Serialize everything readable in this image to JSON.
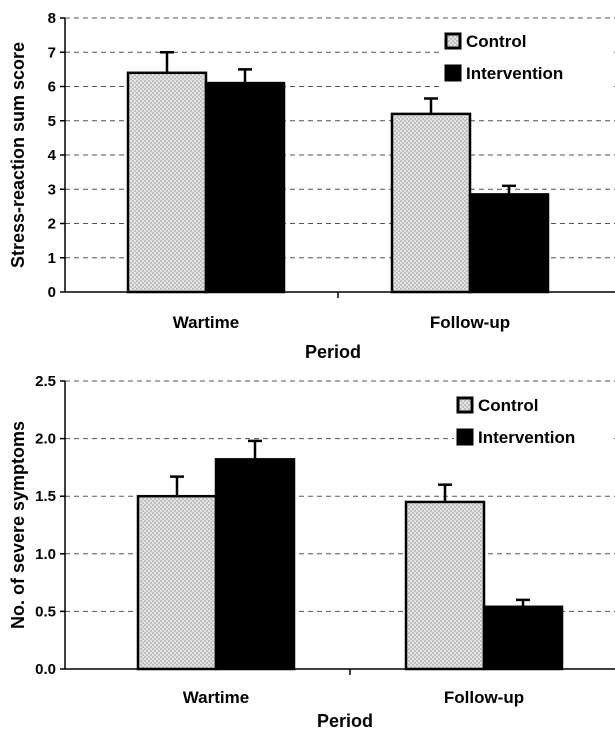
{
  "chart_data": [
    {
      "type": "bar",
      "categories": [
        "Wartime",
        "Follow-up"
      ],
      "series": [
        {
          "name": "Control",
          "values": [
            6.4,
            5.2
          ],
          "errors": [
            0.6,
            0.45
          ],
          "color": "#d9d9d9",
          "pattern": "dotted"
        },
        {
          "name": "Intervention",
          "values": [
            6.1,
            2.85
          ],
          "errors": [
            0.4,
            0.25
          ],
          "color": "#000000"
        }
      ],
      "xlabel": "Period",
      "ylabel": "Stress-reaction sum score",
      "ylim": [
        0,
        8
      ],
      "yticks": [
        "0",
        "1",
        "2",
        "3",
        "4",
        "5",
        "6",
        "7",
        "8"
      ],
      "grid": "dashed horizontal",
      "legend": "top-right"
    },
    {
      "type": "bar",
      "categories": [
        "Wartime",
        "Follow-up"
      ],
      "series": [
        {
          "name": "Control",
          "values": [
            1.5,
            1.45
          ],
          "errors": [
            0.17,
            0.15
          ],
          "color": "#d9d9d9",
          "pattern": "dotted"
        },
        {
          "name": "Intervention",
          "values": [
            1.82,
            0.54
          ],
          "errors": [
            0.16,
            0.06
          ],
          "color": "#000000"
        }
      ],
      "xlabel": "Period",
      "ylabel": "No. of severe symptoms",
      "ylim": [
        0,
        2.5
      ],
      "yticks": [
        "0.0",
        "0.5",
        "1.0",
        "1.5",
        "2.0",
        "2.5"
      ],
      "grid": "dashed horizontal",
      "legend": "top-right"
    }
  ]
}
